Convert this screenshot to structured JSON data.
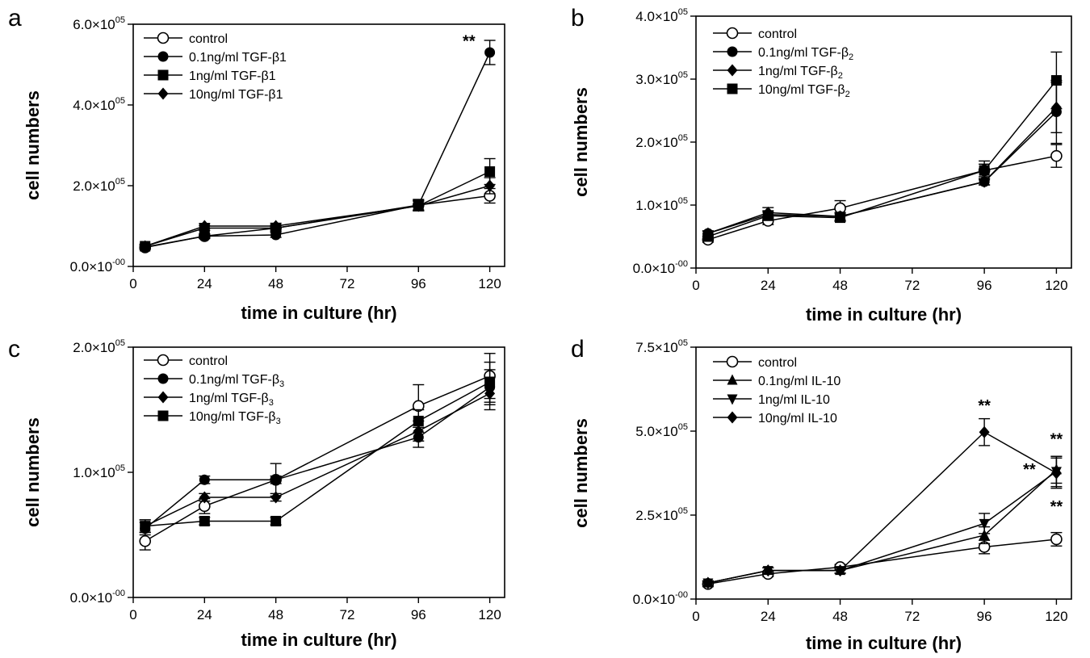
{
  "chart_data": [
    {
      "panel_label": "a",
      "type": "line",
      "xlabel": "time in culture (hr)",
      "ylabel": "cell numbers",
      "xlim": [
        0,
        125
      ],
      "ylim": [
        0,
        600000
      ],
      "xticks": [
        0,
        24,
        48,
        72,
        96,
        120
      ],
      "yticks": [
        {
          "value": 0,
          "label": "0.0×10",
          "exp": "-00"
        },
        {
          "value": 200000,
          "label": "2.0×10",
          "exp": "05"
        },
        {
          "value": 400000,
          "label": "4.0×10",
          "exp": "05"
        },
        {
          "value": 600000,
          "label": "6.0×10",
          "exp": "05"
        }
      ],
      "legend_position": "top-left",
      "series": [
        {
          "name": "control",
          "sub": "",
          "marker": "circle-open",
          "x": [
            4,
            24,
            48,
            96,
            120
          ],
          "y": [
            47000,
            75000,
            95000,
            152000,
            175000
          ],
          "err": [
            5000,
            6000,
            8000,
            12000,
            18000
          ]
        },
        {
          "name": "0.1ng/ml TGF-β1",
          "sub": "",
          "marker": "circle",
          "x": [
            4,
            24,
            48,
            96,
            120
          ],
          "y": [
            48000,
            75000,
            78000,
            152000,
            530000
          ],
          "err": [
            5000,
            5000,
            6000,
            14000,
            30000
          ]
        },
        {
          "name": "1ng/ml TGF-β1",
          "sub": "",
          "marker": "square",
          "x": [
            4,
            24,
            48,
            96,
            120
          ],
          "y": [
            50000,
            95000,
            95000,
            150000,
            235000
          ],
          "err": [
            5000,
            6000,
            7000,
            12000,
            32000
          ]
        },
        {
          "name": "10ng/ml TGF-β1",
          "sub": "",
          "marker": "diamond",
          "x": [
            4,
            24,
            48,
            96,
            120
          ],
          "y": [
            50000,
            100000,
            100000,
            150000,
            200000
          ],
          "err": [
            5000,
            6000,
            7000,
            12000,
            20000
          ]
        }
      ],
      "annotations": [
        {
          "text": "**",
          "x": 113,
          "y": 545000
        }
      ]
    },
    {
      "panel_label": "b",
      "type": "line",
      "xlabel": "time in culture (hr)",
      "ylabel": "cell numbers",
      "xlim": [
        0,
        125
      ],
      "ylim": [
        0,
        400000
      ],
      "xticks": [
        0,
        24,
        48,
        72,
        96,
        120
      ],
      "yticks": [
        {
          "value": 0,
          "label": "0.0×10",
          "exp": "-00"
        },
        {
          "value": 100000,
          "label": "1.0×10",
          "exp": "05"
        },
        {
          "value": 200000,
          "label": "2.0×10",
          "exp": "05"
        },
        {
          "value": 300000,
          "label": "3.0×10",
          "exp": "05"
        },
        {
          "value": 400000,
          "label": "4.0×10",
          "exp": "05"
        }
      ],
      "legend_position": "top-left",
      "series": [
        {
          "name": "control",
          "sub": "",
          "marker": "circle-open",
          "x": [
            4,
            24,
            48,
            96,
            120
          ],
          "y": [
            45000,
            75000,
            95000,
            155000,
            178000
          ],
          "err": [
            4000,
            6000,
            12000,
            15000,
            18000
          ]
        },
        {
          "name": "0.1ng/ml TGF-β",
          "sub": "2",
          "marker": "circle",
          "x": [
            4,
            24,
            48,
            96,
            120
          ],
          "y": [
            55000,
            85000,
            82000,
            137000,
            248000
          ],
          "err": [
            4000,
            6000,
            6000,
            5000,
            50000
          ]
        },
        {
          "name": "1ng/ml TGF-β",
          "sub": "2",
          "marker": "diamond",
          "x": [
            4,
            24,
            48,
            96,
            120
          ],
          "y": [
            55000,
            88000,
            82000,
            137000,
            255000
          ],
          "err": [
            4000,
            8000,
            6000,
            5000,
            40000
          ]
        },
        {
          "name": "10ng/ml TGF-β",
          "sub": "2",
          "marker": "square",
          "x": [
            4,
            24,
            48,
            96,
            120
          ],
          "y": [
            50000,
            83000,
            80000,
            155000,
            298000
          ],
          "err": [
            4000,
            6000,
            6000,
            10000,
            45000
          ]
        }
      ],
      "annotations": []
    },
    {
      "panel_label": "c",
      "type": "line",
      "xlabel": "time in culture (hr)",
      "ylabel": "cell numbers",
      "xlim": [
        0,
        125
      ],
      "ylim": [
        0,
        200000
      ],
      "xticks": [
        0,
        24,
        48,
        72,
        96,
        120
      ],
      "yticks": [
        {
          "value": 0,
          "label": "0.0×10",
          "exp": "-00"
        },
        {
          "value": 100000,
          "label": "1.0×10",
          "exp": "05"
        },
        {
          "value": 200000,
          "label": "2.0×10",
          "exp": "05"
        }
      ],
      "legend_position": "top-left",
      "series": [
        {
          "name": "control",
          "sub": "",
          "marker": "circle-open",
          "x": [
            4,
            24,
            48,
            96,
            120
          ],
          "y": [
            45000,
            73000,
            94000,
            153000,
            177000
          ],
          "err": [
            7000,
            6000,
            13000,
            17000,
            18000
          ]
        },
        {
          "name": "0.1ng/ml TGF-β",
          "sub": "3",
          "marker": "circle",
          "x": [
            4,
            24,
            48,
            96,
            120
          ],
          "y": [
            55000,
            94000,
            94000,
            128000,
            168000
          ],
          "err": [
            5000,
            3000,
            3000,
            8000,
            14000
          ]
        },
        {
          "name": "1ng/ml TGF-β",
          "sub": "3",
          "marker": "diamond",
          "x": [
            4,
            24,
            48,
            96,
            120
          ],
          "y": [
            57000,
            80000,
            80000,
            133000,
            163000
          ],
          "err": [
            5000,
            3000,
            3000,
            8000,
            13000
          ]
        },
        {
          "name": "10ng/ml TGF-β",
          "sub": "3",
          "marker": "square",
          "x": [
            4,
            24,
            48,
            96,
            120
          ],
          "y": [
            57000,
            61000,
            61000,
            141000,
            172000
          ],
          "err": [
            5000,
            3000,
            3000,
            9000,
            16000
          ]
        }
      ],
      "annotations": []
    },
    {
      "panel_label": "d",
      "type": "line",
      "xlabel": "time in culture (hr)",
      "ylabel": "cell numbers",
      "xlim": [
        0,
        125
      ],
      "ylim": [
        0,
        750000
      ],
      "xticks": [
        0,
        24,
        48,
        72,
        96,
        120
      ],
      "yticks": [
        {
          "value": 0,
          "label": "0.0×10",
          "exp": "-00"
        },
        {
          "value": 250000,
          "label": "2.5×10",
          "exp": "05"
        },
        {
          "value": 500000,
          "label": "5.0×10",
          "exp": "05"
        },
        {
          "value": 750000,
          "label": "7.5×10",
          "exp": "05"
        }
      ],
      "legend_position": "top-left",
      "series": [
        {
          "name": "control",
          "sub": "",
          "marker": "circle-open",
          "x": [
            4,
            24,
            48,
            96,
            120
          ],
          "y": [
            45000,
            75000,
            95000,
            155000,
            178000
          ],
          "err": [
            8000,
            8000,
            8000,
            20000,
            20000
          ]
        },
        {
          "name": "0.1ng/ml IL-10",
          "sub": "",
          "marker": "triangle-up",
          "x": [
            4,
            24,
            48,
            96,
            120
          ],
          "y": [
            48000,
            85000,
            85000,
            190000,
            385000
          ],
          "err": [
            6000,
            8000,
            8000,
            25000,
            40000
          ]
        },
        {
          "name": "1ng/ml IL-10",
          "sub": "",
          "marker": "triangle-down",
          "x": [
            4,
            24,
            48,
            96,
            120
          ],
          "y": [
            48000,
            85000,
            85000,
            225000,
            380000
          ],
          "err": [
            6000,
            8000,
            8000,
            30000,
            45000
          ]
        },
        {
          "name": "10ng/ml IL-10",
          "sub": "",
          "marker": "diamond",
          "x": [
            4,
            24,
            48,
            96,
            120
          ],
          "y": [
            48000,
            85000,
            85000,
            497000,
            375000
          ],
          "err": [
            6000,
            8000,
            8000,
            40000,
            45000
          ]
        }
      ],
      "annotations": [
        {
          "text": "**",
          "x": 96,
          "y": 560000
        },
        {
          "text": "**",
          "x": 120,
          "y": 460000
        },
        {
          "text": "**",
          "x": 111,
          "y": 370000
        },
        {
          "text": "**",
          "x": 120,
          "y": 260000
        }
      ]
    }
  ]
}
